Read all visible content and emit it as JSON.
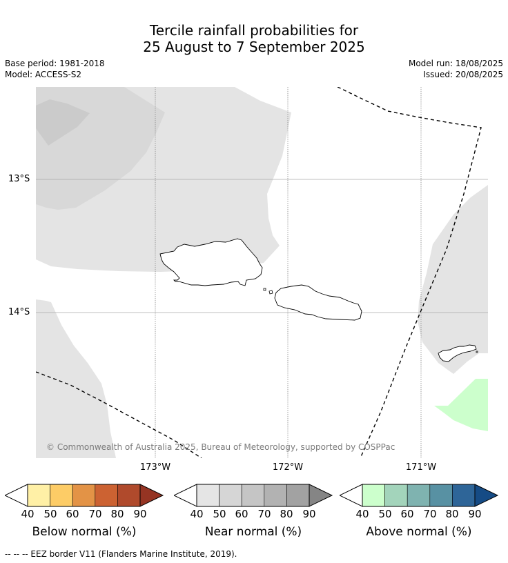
{
  "title_line1": "Tercile rainfall probabilities for",
  "title_line2": "25 August to 7 September 2025",
  "meta": {
    "base_period": "Base period: 1981-2018",
    "model": "Model: ACCESS-S2",
    "model_run": "Model run: 18/08/2025",
    "issued": "Issued: 20/08/2025"
  },
  "map": {
    "lat_labels": [
      "13°S",
      "14°S"
    ],
    "lon_labels": [
      "173°W",
      "172°W",
      "171°W"
    ],
    "copyright": "© Commonwealth of Australia 2025, Bureau of Meteorology, supported by COSPPac"
  },
  "legends": [
    {
      "caption": "Below normal (%)",
      "ticks": [
        "40",
        "50",
        "60",
        "70",
        "80",
        "90"
      ],
      "colors": [
        "#fff0a6",
        "#fdcc66",
        "#e39346",
        "#cc6232",
        "#b04a2c",
        "#953423"
      ]
    },
    {
      "caption": "Near normal (%)",
      "ticks": [
        "40",
        "50",
        "60",
        "70",
        "80",
        "90"
      ],
      "colors": [
        "#e5e5e5",
        "#d6d6d6",
        "#c5c5c5",
        "#b2b2b2",
        "#a2a2a2",
        "#858585"
      ]
    },
    {
      "caption": "Above normal (%)",
      "ticks": [
        "40",
        "50",
        "60",
        "70",
        "80",
        "90"
      ],
      "colors": [
        "#ccffcc",
        "#a3d4bb",
        "#7fb3b0",
        "#5891a3",
        "#2e6598",
        "#154b85"
      ]
    }
  ],
  "footnote": "--  --  -- EEZ border V11 (Flanders Marine Institute, 2019)."
}
